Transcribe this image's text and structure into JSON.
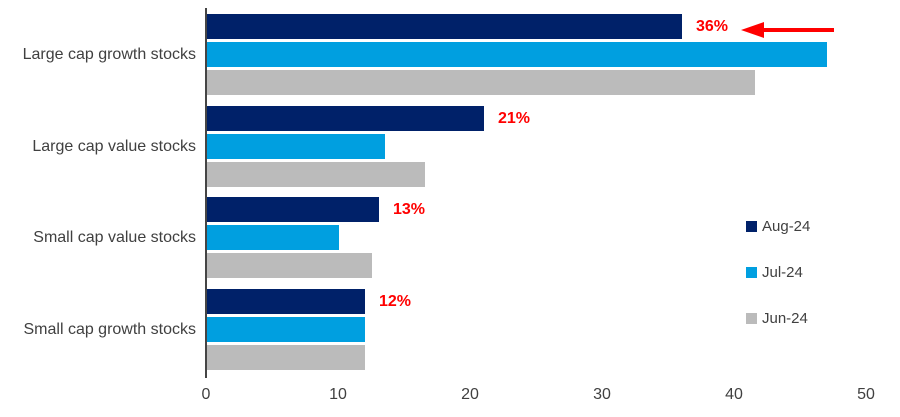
{
  "chart_data": {
    "type": "bar",
    "orientation": "horizontal",
    "title": "",
    "xlabel": "",
    "ylabel": "",
    "categories": [
      "Large cap growth stocks",
      "Large cap value stocks",
      "Small cap value stocks",
      "Small cap growth stocks"
    ],
    "series": [
      {
        "name": "Aug-24",
        "color": "#002169",
        "values": [
          36,
          21,
          13,
          12
        ]
      },
      {
        "name": "Jul-24",
        "color": "#009FE0",
        "values": [
          47,
          13.5,
          10,
          12
        ]
      },
      {
        "name": "Jun-24",
        "color": "#BBBBBB",
        "values": [
          41.5,
          16.5,
          12.5,
          12
        ]
      }
    ],
    "data_labels": {
      "on_series": "Aug-24",
      "labels": [
        "36%",
        "21%",
        "13%",
        "12%"
      ],
      "color": "#FF0000"
    },
    "xlim": [
      0,
      50
    ],
    "x_ticks": [
      0,
      10,
      20,
      30,
      40,
      50
    ],
    "grid": false,
    "legend_position": "right",
    "annotation": {
      "type": "arrow",
      "points_to": "36%",
      "direction": "left",
      "color": "#FF0000"
    }
  },
  "colors": {
    "background": "#FFFFFF",
    "axis_line": "#454545",
    "text": "#404040",
    "accent_red": "#FF0000"
  }
}
